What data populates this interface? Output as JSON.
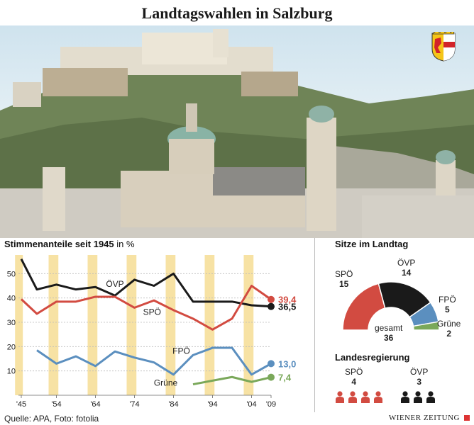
{
  "title": "Landtagswahlen in Salzburg",
  "chart_data": [
    {
      "type": "line",
      "title": "Stimmenanteile seit 1945",
      "title_unit": "in %",
      "x": [
        1945,
        1949,
        1954,
        1959,
        1964,
        1969,
        1974,
        1979,
        1984,
        1989,
        1994,
        1999,
        2004,
        2009
      ],
      "x_tick_labels": [
        "'45",
        "'54",
        "'64",
        "'74",
        "'84",
        "'94",
        "'04",
        "'09"
      ],
      "x_tick_values": [
        1945,
        1954,
        1964,
        1974,
        1984,
        1994,
        2004,
        2009
      ],
      "ylim": [
        0,
        60
      ],
      "y_ticks": [
        10,
        20,
        30,
        40,
        50
      ],
      "series": [
        {
          "name": "ÖVP",
          "color": "#1a1a1a",
          "x": [
            1945,
            1949,
            1954,
            1959,
            1964,
            1969,
            1974,
            1979,
            1984,
            1989,
            1994,
            1999,
            2004,
            2009
          ],
          "values": [
            56,
            43.5,
            45.5,
            43.5,
            44.5,
            41,
            47.5,
            45,
            50,
            38.5,
            38.5,
            38.5,
            37,
            36.5
          ],
          "end_label": "36,5"
        },
        {
          "name": "SPÖ",
          "color": "#d24b41",
          "x": [
            1945,
            1949,
            1954,
            1959,
            1964,
            1969,
            1974,
            1979,
            1984,
            1989,
            1994,
            1999,
            2004,
            2009
          ],
          "values": [
            39.5,
            33.5,
            38.5,
            38.5,
            40.5,
            40.5,
            36,
            39,
            35,
            31.5,
            27,
            31.5,
            45,
            39.4
          ],
          "end_label": "39,4"
        },
        {
          "name": "FPÖ",
          "color": "#5b8fbf",
          "x": [
            1949,
            1954,
            1959,
            1964,
            1969,
            1974,
            1979,
            1984,
            1989,
            1994,
            1999,
            2004,
            2009
          ],
          "values": [
            18.5,
            13,
            16,
            12,
            18,
            15.5,
            13.5,
            8.5,
            16.5,
            19.5,
            19.5,
            8.5,
            13.0
          ],
          "end_label": "13,0"
        },
        {
          "name": "Grüne",
          "color": "#7aa85a",
          "x": [
            1989,
            1994,
            1999,
            2004,
            2009
          ],
          "values": [
            4.5,
            6,
            7.5,
            5.5,
            7.4
          ],
          "end_label": "7,4"
        }
      ],
      "grid": true
    },
    {
      "type": "pie",
      "title": "Sitze im Landtag",
      "shape": "half-donut",
      "total_label": "gesamt",
      "total": 36,
      "categories": [
        "SPÖ",
        "ÖVP",
        "FPÖ",
        "Grüne"
      ],
      "values": [
        15,
        14,
        5,
        2
      ],
      "colors": [
        "#d24b41",
        "#1a1a1a",
        "#5b8fbf",
        "#7aa85a"
      ]
    }
  ],
  "government": {
    "title": "Landesregierung",
    "parties": [
      {
        "name": "SPÖ",
        "seats": 4,
        "color": "#d24b41"
      },
      {
        "name": "ÖVP",
        "seats": 3,
        "color": "#1a1a1a"
      }
    ]
  },
  "footer": {
    "source": "Quelle: APA, Foto: fotolia",
    "brand": "WIENER ZEITUNG"
  },
  "icons": {
    "crest": "salzburg-crest-icon",
    "person": "person-icon"
  }
}
